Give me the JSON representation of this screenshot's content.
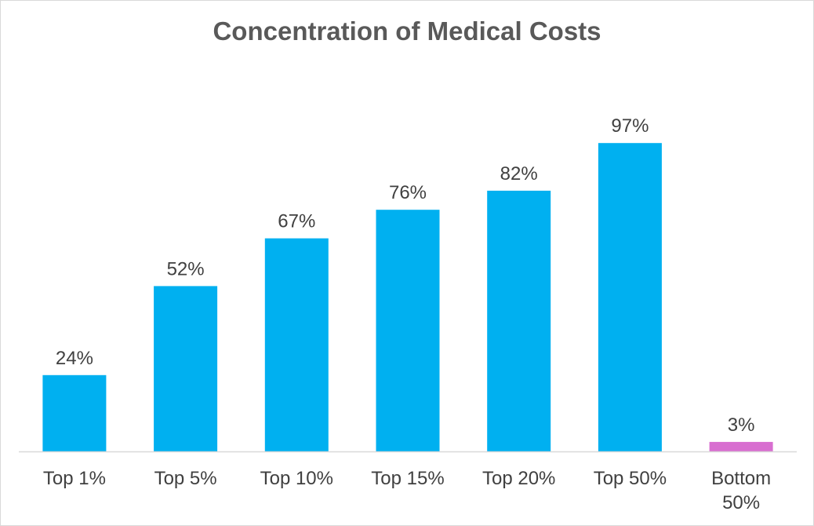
{
  "chart_data": {
    "type": "bar",
    "title": "Concentration of Medical Costs",
    "categories": [
      "Top 1%",
      "Top 5%",
      "Top 10%",
      "Top 15%",
      "Top 20%",
      "Top 50%",
      "Bottom 50%"
    ],
    "category_lines": [
      [
        "Top 1%"
      ],
      [
        "Top 5%"
      ],
      [
        "Top 10%"
      ],
      [
        "Top 15%"
      ],
      [
        "Top 20%"
      ],
      [
        "Top 50%"
      ],
      [
        "Bottom",
        "50%"
      ]
    ],
    "values": [
      24,
      52,
      67,
      76,
      82,
      97,
      3
    ],
    "data_labels": [
      "24%",
      "52%",
      "67%",
      "76%",
      "82%",
      "97%",
      "3%"
    ],
    "colors": [
      "#00b0f0",
      "#00b0f0",
      "#00b0f0",
      "#00b0f0",
      "#00b0f0",
      "#00b0f0",
      "#d86ed0"
    ],
    "xlabel": "",
    "ylabel": "",
    "ylim": [
      0,
      100
    ],
    "grid": false,
    "axis_color": "#d9d9d9"
  }
}
